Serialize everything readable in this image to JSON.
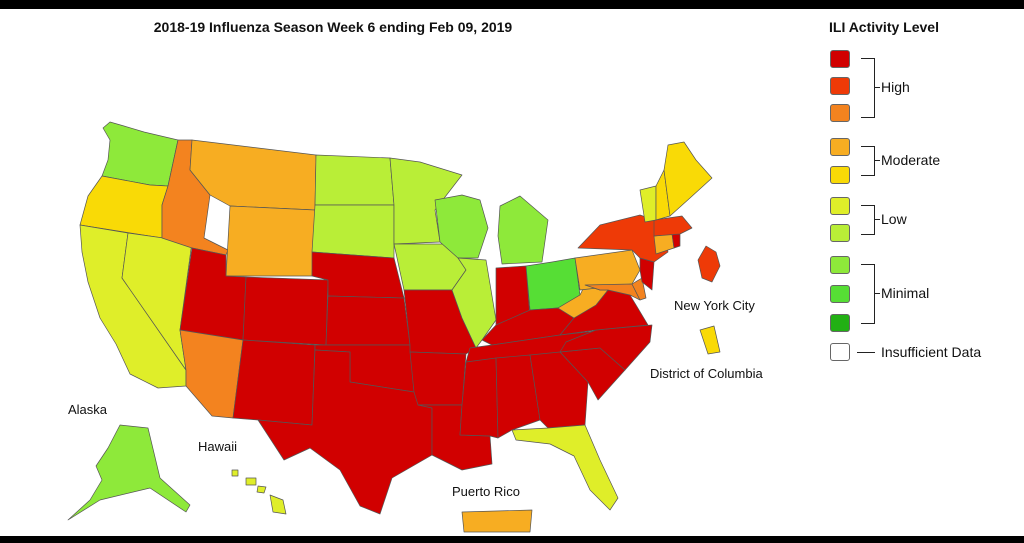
{
  "title": "2018-19 Influenza Season Week 6 ending Feb 09, 2019",
  "legend": {
    "title": "ILI Activity Level",
    "colors": [
      "#d10000",
      "#ee3a07",
      "#f3831f",
      "#f7ad22",
      "#f9da06",
      "#dfee29",
      "#b9ee37",
      "#8ee93a",
      "#56de35",
      "#22b014",
      "#ffffff"
    ],
    "groups": {
      "high": "High",
      "moderate": "Moderate",
      "low": "Low",
      "minimal": "Minimal",
      "insufficient": "Insufficient Data"
    }
  },
  "territory_labels": {
    "alaska": "Alaska",
    "hawaii": "Hawaii",
    "nyc": "New York City",
    "dc": "District of Columbia",
    "puerto_rico": "Puerto Rico"
  },
  "state_levels": {
    "WA": "#8ee93a",
    "OR": "#f9da06",
    "CA": "#dfee29",
    "NV": "#dfee29",
    "ID": "#f3831f",
    "MT": "#f7ad22",
    "WY": "#f7ad22",
    "UT": "#d10000",
    "AZ": "#f3831f",
    "CO": "#d10000",
    "NM": "#d10000",
    "ND": "#b9ee37",
    "SD": "#b9ee37",
    "NE": "#d10000",
    "KS": "#d10000",
    "OK": "#d10000",
    "TX": "#d10000",
    "MN": "#b9ee37",
    "IA": "#b9ee37",
    "MO": "#d10000",
    "AR": "#d10000",
    "LA": "#d10000",
    "WI": "#8ee93a",
    "IL": "#b9ee37",
    "MI": "#8ee93a",
    "IN": "#d10000",
    "OH": "#56de35",
    "KY": "#d10000",
    "TN": "#d10000",
    "MS": "#d10000",
    "AL": "#d10000",
    "GA": "#d10000",
    "FL": "#dfee29",
    "SC": "#d10000",
    "NC": "#d10000",
    "VA": "#d10000",
    "WV": "#f7ad22",
    "PA": "#f7ad22",
    "NY": "#ee3a07",
    "ME": "#f9da06",
    "NH": "#f9da06",
    "VT": "#dfee29",
    "MA": "#ee3a07",
    "CT": "#f7ad22",
    "RI": "#d10000",
    "NJ": "#d10000",
    "DE": "#f3831f",
    "MD": "#f3831f",
    "AK": "#8ee93a",
    "HI": "#dfee29",
    "NYC": "#ee3a07",
    "DC": "#f9da06",
    "PR": "#f7ad22"
  }
}
